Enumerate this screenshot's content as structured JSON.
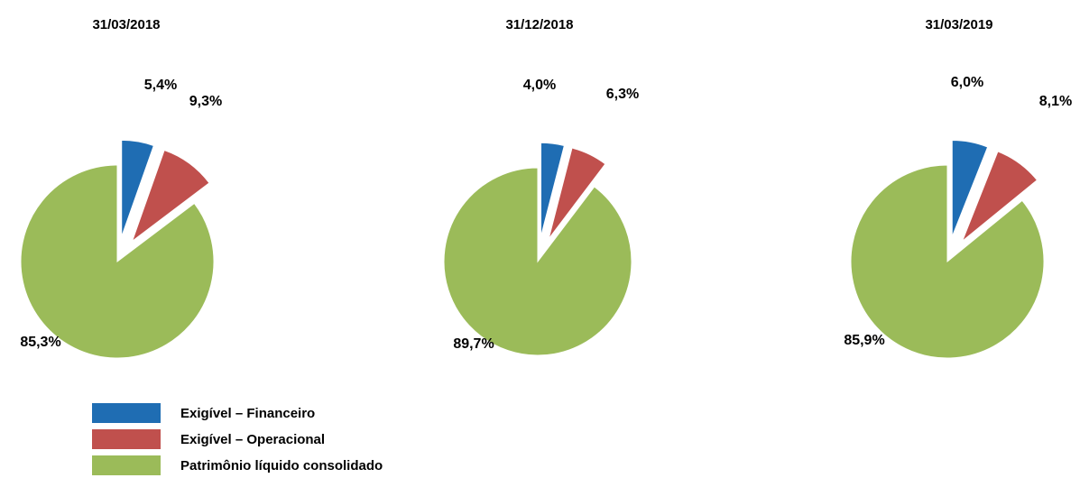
{
  "chart_data": [
    {
      "type": "pie",
      "title": "31/03/2018",
      "values": [
        5.4,
        9.3,
        85.3
      ],
      "value_labels": [
        "5,4%",
        "9,3%",
        "85,3%"
      ]
    },
    {
      "type": "pie",
      "title": "31/12/2018",
      "values": [
        4.0,
        6.3,
        89.7
      ],
      "value_labels": [
        "4,0%",
        "6,3%",
        "89,7%"
      ]
    },
    {
      "type": "pie",
      "title": "31/03/2019",
      "values": [
        6.0,
        8.1,
        85.9
      ],
      "value_labels": [
        "6,0%",
        "8,1%",
        "85,9%"
      ]
    }
  ],
  "legend": {
    "labels": [
      "Exigível – Financeiro",
      "Exigível – Operacional",
      "Patrimônio líquido consolidado"
    ],
    "colors": [
      "#1f6db3",
      "#c0504d",
      "#9bbb59"
    ]
  }
}
